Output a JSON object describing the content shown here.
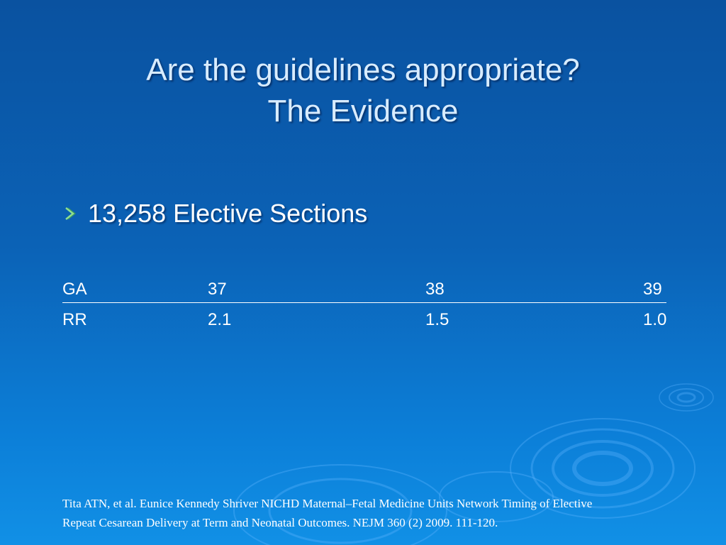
{
  "title": {
    "line1": "Are the guidelines appropriate?",
    "line2": "The Evidence"
  },
  "bullet": {
    "icon": "arrow-bullet-icon",
    "text": "13,258 Elective Sections"
  },
  "table": {
    "header": [
      "GA",
      "37",
      "38",
      "39"
    ],
    "rows": [
      [
        "RR",
        "2.1",
        "1.5",
        "1.0"
      ]
    ]
  },
  "citation": {
    "line1": "Tita ATN, et al. Eunice Kennedy Shriver NICHD Maternal–Fetal Medicine Units Network Timing of Elective",
    "line2": "Repeat Cesarean Delivery at Term and Neonatal Outcomes. NEJM 360 (2) 2009. 111-120."
  },
  "colors": {
    "background_top": "#0a52a0",
    "background_bottom": "#1190e6",
    "title_text": "#d8ecff",
    "bullet_arrow": "#8fe08f"
  }
}
